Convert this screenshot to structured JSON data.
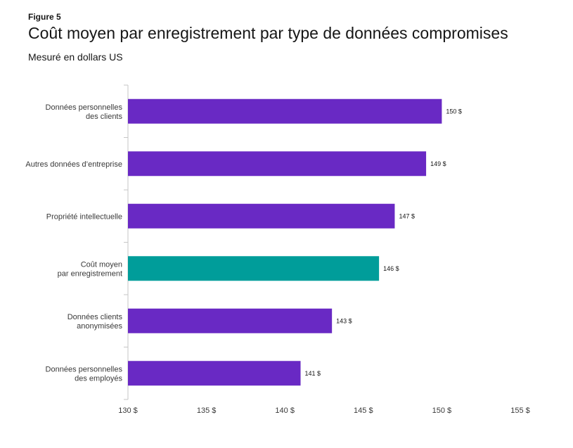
{
  "figure_label": "Figure 5",
  "chart_data": {
    "type": "bar",
    "orientation": "horizontal",
    "title": "Coût moyen par enregistrement par type de données compromises",
    "subtitle": "Mesuré en dollars US",
    "categories": [
      [
        "Données personnelles",
        "des clients"
      ],
      [
        "Autres données d’entreprise"
      ],
      [
        "Propriété intellectuelle"
      ],
      [
        "Coût moyen",
        "par enregistrement"
      ],
      [
        "Données clients",
        "anonymisées"
      ],
      [
        "Données personnelles",
        "des employés"
      ]
    ],
    "values": [
      150,
      149,
      147,
      146,
      143,
      141
    ],
    "value_labels": [
      "150 $",
      "149 $",
      "147 $",
      "146 $",
      "143 $",
      "141 $"
    ],
    "highlight_index": 3,
    "xlim": [
      130,
      155
    ],
    "xticks": [
      130,
      135,
      140,
      145,
      150,
      155
    ],
    "xtick_labels": [
      "130 $",
      "135 $",
      "140 $",
      "145 $",
      "150 $",
      "155 $"
    ],
    "xlabel": "",
    "ylabel": "",
    "grid": false,
    "colors": {
      "bar": "#6929c4",
      "highlight": "#009d9a",
      "axis": "#c6c6c6"
    }
  }
}
